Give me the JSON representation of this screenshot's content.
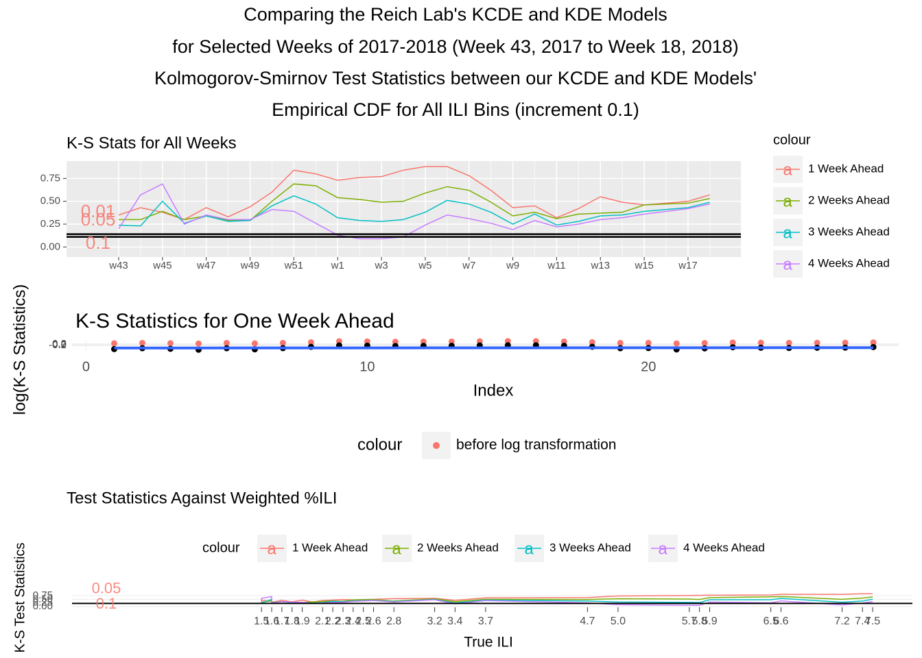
{
  "title": [
    "Comparing the Reich Lab's KCDE and KDE Models",
    "for Selected Weeks of 2017-2018 (Week 43, 2017 to Week 18, 2018)",
    "Kolmogorov-Smirnov Test Statistics between our KCDE and KDE Models'",
    "Empirical CDF for All ILI Bins (increment 0.1)"
  ],
  "y_label": "log(K-S Statistics)",
  "chart_data": [
    {
      "type": "line",
      "title": "K-S Stats for All Weeks",
      "categories": [
        "w43",
        null,
        "w45",
        null,
        "w47",
        null,
        "w49",
        null,
        "w51",
        null,
        "w1",
        null,
        "w3",
        null,
        "w5",
        null,
        "w7",
        null,
        "w9",
        null,
        "w11",
        null,
        "w13",
        null,
        "w15",
        null,
        "w17",
        null
      ],
      "series": [
        {
          "name": "1 Week Ahead",
          "color": "#F8766D",
          "values": [
            0.35,
            0.43,
            0.38,
            0.3,
            0.43,
            0.33,
            0.44,
            0.6,
            0.84,
            0.8,
            0.73,
            0.76,
            0.77,
            0.84,
            0.88,
            0.88,
            0.78,
            0.62,
            0.43,
            0.45,
            0.32,
            0.42,
            0.55,
            0.49,
            0.46,
            0.48,
            0.5,
            0.57
          ]
        },
        {
          "name": "2 Weeks Ahead",
          "color": "#7CAE00",
          "values": [
            0.3,
            0.3,
            0.39,
            0.3,
            0.34,
            0.29,
            0.29,
            0.5,
            0.69,
            0.67,
            0.54,
            0.52,
            0.49,
            0.5,
            0.59,
            0.66,
            0.62,
            0.49,
            0.34,
            0.38,
            0.31,
            0.36,
            0.37,
            0.38,
            0.46,
            0.47,
            0.48,
            0.53
          ]
        },
        {
          "name": "3 Weeks Ahead",
          "color": "#00BFC4",
          "values": [
            0.24,
            0.23,
            0.5,
            0.26,
            0.34,
            0.28,
            0.29,
            0.45,
            0.56,
            0.47,
            0.32,
            0.29,
            0.28,
            0.3,
            0.38,
            0.51,
            0.47,
            0.38,
            0.25,
            0.36,
            0.24,
            0.28,
            0.34,
            0.35,
            0.39,
            0.41,
            0.43,
            0.49
          ]
        },
        {
          "name": "4 Weeks Ahead",
          "color": "#C77CFF",
          "values": [
            0.2,
            0.57,
            0.69,
            0.25,
            0.35,
            0.3,
            0.3,
            0.41,
            0.39,
            0.26,
            0.13,
            0.09,
            0.09,
            0.11,
            0.24,
            0.35,
            0.31,
            0.26,
            0.19,
            0.29,
            0.22,
            0.25,
            0.3,
            0.32,
            0.36,
            0.39,
            0.42,
            0.47
          ]
        }
      ],
      "ylim": [
        -0.11,
        0.94
      ],
      "yticks": [
        {
          "value": 0,
          "label": "0.00"
        },
        {
          "value": 0.25,
          "label": "0.25"
        },
        {
          "value": 0.5,
          "label": "0.50"
        },
        {
          "value": 0.75,
          "label": "0.75"
        }
      ],
      "grid": true,
      "legend": "right",
      "legend_title": "colour",
      "hlines": [
        0.11,
        0.14
      ],
      "annotations": [
        {
          "text": "0.01",
          "y": 0.375
        },
        {
          "text": "0.05",
          "y": 0.285
        },
        {
          "text": "0.1",
          "y": 0.03
        }
      ]
    },
    {
      "type": "scatter",
      "title": "K-S Statistics for One Week Ahead",
      "x_label": "Index",
      "x": [
        1,
        2,
        3,
        4,
        5,
        6,
        7,
        8,
        9,
        10,
        11,
        12,
        13,
        14,
        15,
        16,
        17,
        18,
        19,
        20,
        21,
        22,
        23,
        24,
        25,
        26,
        27,
        28
      ],
      "series": [
        {
          "name": "before log transformation",
          "color": "#F8766D",
          "values": [
            0.35,
            0.43,
            0.38,
            0.3,
            0.43,
            0.33,
            0.44,
            0.6,
            0.84,
            0.8,
            0.73,
            0.76,
            0.77,
            0.84,
            0.88,
            0.88,
            0.78,
            0.62,
            0.43,
            0.45,
            0.32,
            0.42,
            0.55,
            0.49,
            0.46,
            0.48,
            0.5,
            0.57
          ]
        },
        {
          "color": "#000000",
          "values": [
            -1.05,
            -0.84,
            -0.97,
            -1.2,
            -0.84,
            -1.11,
            -0.82,
            -0.51,
            -0.17,
            -0.22,
            -0.31,
            -0.27,
            -0.26,
            -0.17,
            -0.13,
            -0.13,
            -0.25,
            -0.48,
            -0.84,
            -0.8,
            -1.14,
            -0.87,
            -0.6,
            -0.71,
            -0.78,
            -0.73,
            -0.69,
            -0.56
          ]
        },
        {
          "color": "#3366FF",
          "kind": "line",
          "x": [
            1,
            28
          ],
          "values": [
            -0.8,
            -0.7
          ]
        }
      ],
      "xlim": [
        -0.5,
        28.9
      ],
      "xticks": [
        0,
        10,
        20
      ],
      "ylim": [
        -1.5,
        1.0
      ],
      "yticks": [
        -0.2,
        {
          "value": 0,
          "label": "0.0"
        },
        0.2
      ],
      "grid": true,
      "legend": "bottom",
      "legend_title": "colour"
    },
    {
      "type": "line",
      "title": "Test Statistics Against Weighted %ILI",
      "x_label": "True ILI",
      "y_label": "K-S Test Statistics",
      "x": [
        1.5,
        1.5,
        1.6,
        1.6,
        1.7,
        1.8,
        1.9,
        2.0,
        2.1,
        2.2,
        2.3,
        2.4,
        2.5,
        2.6,
        2.8,
        3.2,
        3.4,
        3.7,
        4.7,
        5.0,
        5.7,
        5.8,
        5.9,
        6.5,
        6.6,
        7.2,
        7.4,
        7.5
      ],
      "series": [
        {
          "name": "1 Week Ahead",
          "color": "#F8766D",
          "values": [
            0.35,
            0.43,
            0.38,
            0.3,
            0.43,
            0.33,
            0.44,
            0.32,
            0.42,
            0.45,
            0.49,
            0.46,
            0.48,
            0.5,
            0.55,
            0.57,
            0.43,
            0.6,
            0.62,
            0.73,
            0.76,
            0.77,
            0.78,
            0.8,
            0.84,
            0.84,
            0.88,
            0.88
          ]
        },
        {
          "name": "2 Weeks Ahead",
          "color": "#7CAE00",
          "values": [
            0.3,
            0.3,
            0.39,
            0.3,
            0.34,
            0.29,
            0.29,
            0.31,
            0.36,
            0.38,
            0.37,
            0.46,
            0.47,
            0.48,
            0.38,
            0.53,
            0.34,
            0.5,
            0.49,
            0.54,
            0.52,
            0.49,
            0.62,
            0.67,
            0.69,
            0.5,
            0.59,
            0.66
          ]
        },
        {
          "name": "3 Weeks Ahead",
          "color": "#00BFC4",
          "values": [
            0.24,
            0.23,
            0.5,
            0.26,
            0.34,
            0.28,
            0.29,
            0.24,
            0.28,
            0.36,
            0.34,
            0.39,
            0.41,
            0.43,
            0.35,
            0.49,
            0.25,
            0.45,
            0.38,
            0.32,
            0.29,
            0.28,
            0.47,
            0.47,
            0.56,
            0.3,
            0.38,
            0.51
          ]
        },
        {
          "name": "4 Weeks Ahead",
          "color": "#C77CFF",
          "values": [
            0.2,
            0.57,
            0.69,
            0.25,
            0.35,
            0.3,
            0.3,
            0.22,
            0.25,
            0.29,
            0.3,
            0.36,
            0.39,
            0.42,
            0.32,
            0.47,
            0.19,
            0.41,
            0.26,
            0.13,
            0.09,
            0.09,
            0.31,
            0.26,
            0.39,
            0.11,
            0.24,
            0.35
          ]
        }
      ],
      "xlim": [
        -0.36,
        7.89
      ],
      "xticks": [
        1.5,
        1.6,
        1.7,
        1.8,
        1.9,
        2.1,
        2.2,
        2.3,
        2.4,
        2.5,
        2.6,
        2.8,
        3.2,
        3.4,
        3.7,
        4.7,
        {
          "value": 5,
          "label": "5.0"
        },
        5.7,
        5.8,
        5.9,
        6.5,
        6.6,
        7.2,
        7.4,
        7.5
      ],
      "ylim": [
        -0.14,
        1.27
      ],
      "yticks": [
        {
          "value": 0,
          "label": "0.00"
        },
        {
          "value": 0.25,
          "label": "0.25"
        },
        {
          "value": 0.5,
          "label": "0.50"
        },
        {
          "value": 0.75,
          "label": "0.75"
        }
      ],
      "grid": true,
      "legend": "top",
      "legend_title": "colour",
      "hlines": [
        0.22
      ],
      "annotations": [
        {
          "text": "0.05",
          "y": 1.2
        },
        {
          "text": "0.1",
          "y": 0.14
        }
      ]
    }
  ]
}
